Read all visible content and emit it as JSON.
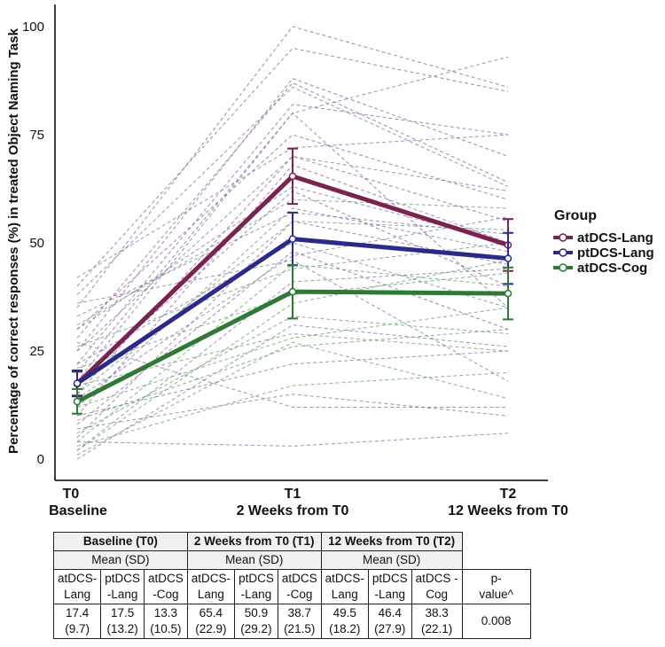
{
  "chart_data": {
    "type": "line",
    "ylabel": "Percentage of correct responses (%) in treated Object Naming Task",
    "ylim": [
      0,
      100
    ],
    "yticks": [
      0,
      25,
      50,
      75,
      100
    ],
    "x_ticks": [
      {
        "code": "T0",
        "label": "Baseline"
      },
      {
        "code": "T1",
        "label": "2 Weeks from T0"
      },
      {
        "code": "T2",
        "label": "12 Weeks from T0"
      }
    ],
    "legend_title": "Group",
    "series": [
      {
        "name": "atDCS-Lang",
        "color": "#7a2350",
        "values": [
          17.4,
          65.4,
          49.5
        ],
        "err_low": [
          14.7,
          59.0,
          43.5
        ],
        "err_high": [
          20.2,
          71.8,
          55.5
        ]
      },
      {
        "name": "ptDCS-Lang",
        "color": "#2b2a8a",
        "values": [
          17.5,
          50.9,
          46.4
        ],
        "err_low": [
          14.5,
          44.8,
          40.5
        ],
        "err_high": [
          20.5,
          57.0,
          52.3
        ]
      },
      {
        "name": "atDCS-Cog",
        "color": "#2e7a34",
        "values": [
          13.3,
          38.7,
          38.3
        ],
        "err_low": [
          10.5,
          32.5,
          32.3
        ],
        "err_high": [
          16.2,
          44.9,
          44.3
        ]
      }
    ],
    "individual_lines": {
      "atDCS-Lang": [
        [
          28,
          87,
          64
        ],
        [
          35,
          100,
          86
        ],
        [
          22,
          82,
          75
        ],
        [
          15,
          70,
          55
        ],
        [
          10,
          68,
          50
        ],
        [
          30,
          75,
          60
        ],
        [
          25,
          88,
          70
        ],
        [
          5,
          55,
          45
        ],
        [
          18,
          62,
          40
        ],
        [
          40,
          95,
          85
        ],
        [
          8,
          48,
          30
        ],
        [
          20,
          80,
          35
        ]
      ],
      "ptDCS-Lang": [
        [
          42,
          72,
          75
        ],
        [
          38,
          86,
          63
        ],
        [
          33,
          57,
          52
        ],
        [
          30,
          63,
          50
        ],
        [
          27,
          12,
          12
        ],
        [
          22,
          50,
          35
        ],
        [
          18,
          80,
          93
        ],
        [
          14,
          47,
          56
        ],
        [
          12,
          58,
          48
        ],
        [
          7,
          15,
          10
        ],
        [
          4,
          3,
          6
        ],
        [
          2,
          41,
          44
        ],
        [
          25,
          70,
          62
        ],
        [
          36,
          46,
          18
        ],
        [
          10,
          22,
          25
        ],
        [
          0,
          31,
          26
        ]
      ],
      "atDCS-Cog": [
        [
          31,
          60,
          58
        ],
        [
          26,
          44,
          50
        ],
        [
          21,
          38,
          43
        ],
        [
          17,
          29,
          25
        ],
        [
          15,
          55,
          53
        ],
        [
          12,
          28,
          35
        ],
        [
          9,
          26,
          30
        ],
        [
          6,
          33,
          29
        ],
        [
          4,
          45,
          40
        ],
        [
          3,
          17,
          20
        ],
        [
          2,
          36,
          46
        ],
        [
          1,
          27,
          14
        ]
      ]
    }
  },
  "table": {
    "timepoints": [
      {
        "title": "Baseline (T0)",
        "stat": "Mean (SD)",
        "groups": [
          [
            "atDCS-",
            "Lang"
          ],
          [
            "ptDCS",
            "-Lang"
          ],
          [
            "atDCS",
            "-Cog"
          ]
        ],
        "means": [
          "17.4",
          "17.5",
          "13.3"
        ],
        "sds": [
          "(9.7)",
          "(13.2)",
          "(10.5)"
        ]
      },
      {
        "title": "2 Weeks from T0 (T1)",
        "stat": "Mean (SD)",
        "groups": [
          [
            "atDCS-",
            "Lang"
          ],
          [
            "ptDCS",
            "-Lang"
          ],
          [
            "atDCS",
            "-Cog"
          ]
        ],
        "means": [
          "65.4",
          "50.9",
          "38.7"
        ],
        "sds": [
          "(22.9)",
          "(29.2)",
          "(21.5)"
        ]
      },
      {
        "title": "12 Weeks from T0 (T2)",
        "stat": "Mean (SD)",
        "groups": [
          [
            "atDCS-",
            "Lang"
          ],
          [
            "ptDCS",
            "-Lang"
          ],
          [
            "atDCS -",
            "Cog"
          ]
        ],
        "means": [
          "49.5",
          "46.4",
          "38.3"
        ],
        "sds": [
          "(18.2)",
          "(27.9)",
          "(22.1)"
        ]
      }
    ],
    "pvalue_header": [
      "p-",
      "value^"
    ],
    "pvalue": "0.008"
  }
}
